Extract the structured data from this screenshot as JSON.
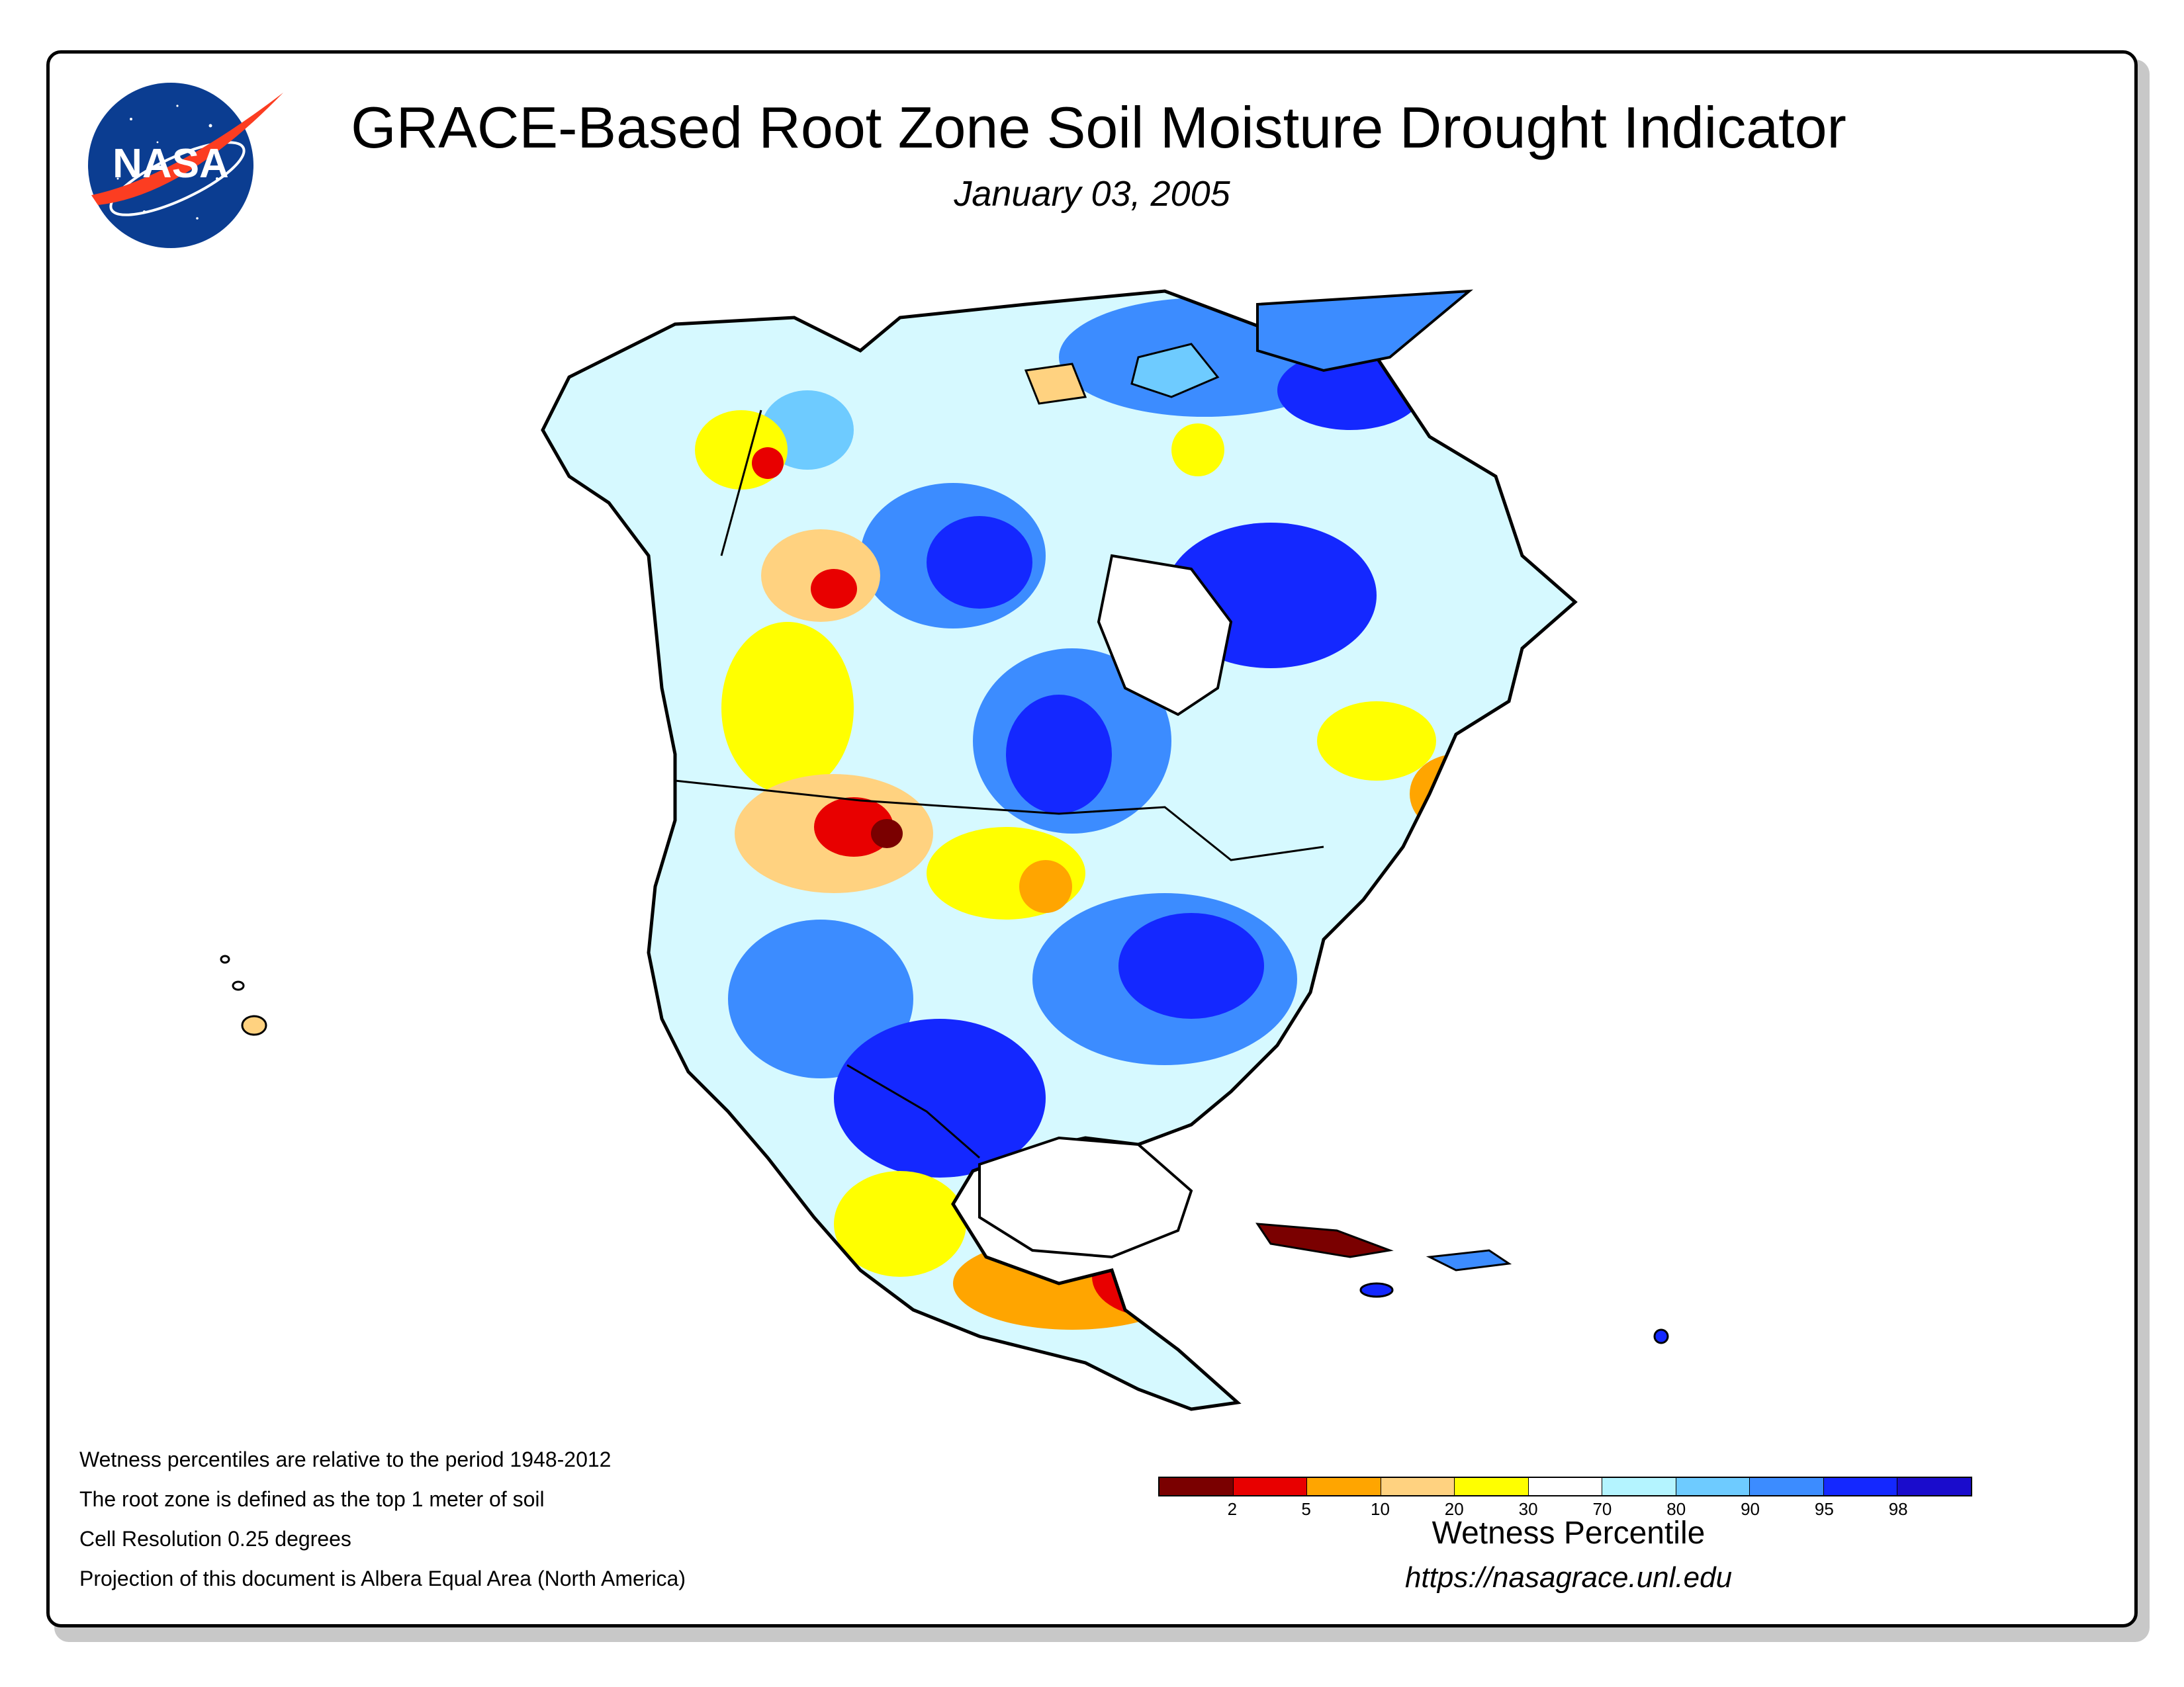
{
  "header": {
    "title": "GRACE-Based Root Zone Soil Moisture Drought Indicator",
    "date": "January 03, 2005"
  },
  "logo": {
    "text": "NASA",
    "icon": "nasa-meatball-logo"
  },
  "notes": [
    "Wetness percentiles are relative to the period 1948-2012",
    "The root zone is defined as the top 1 meter of soil",
    "Cell Resolution 0.25 degrees",
    "Projection of this document is Albera Equal Area (North America)"
  ],
  "legend": {
    "title": "Wetness Percentile",
    "ticks": [
      "2",
      "5",
      "10",
      "20",
      "30",
      "70",
      "80",
      "90",
      "95",
      "98"
    ],
    "colors": [
      "#7a0000",
      "#e80000",
      "#ffa500",
      "#ffd280",
      "#ffff00",
      "#ffffff",
      "#b4f4ff",
      "#6ecbff",
      "#3c8cff",
      "#1428ff",
      "#1a0ccc"
    ]
  },
  "footer": {
    "url": "https://nasagrace.unl.edu"
  }
}
